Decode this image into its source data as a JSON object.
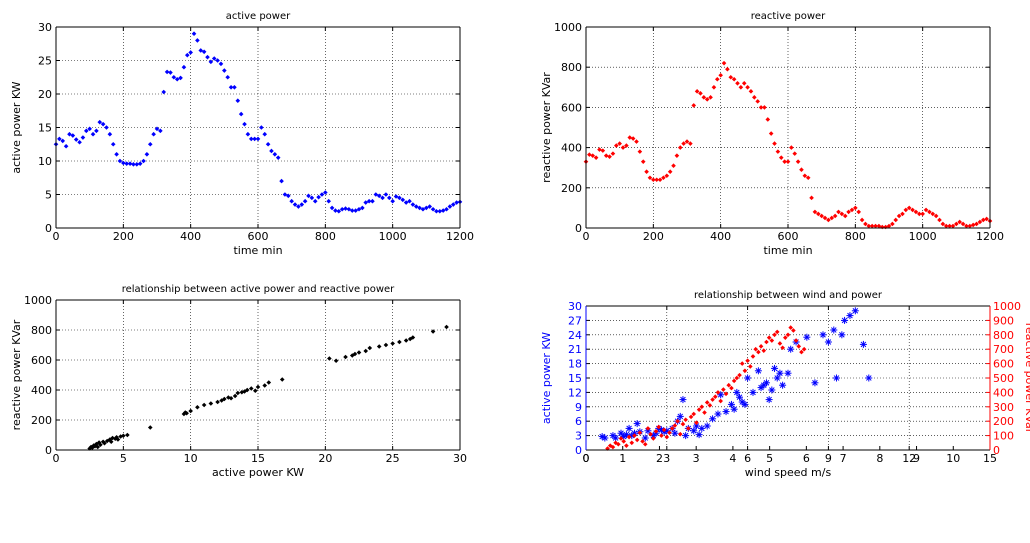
{
  "chart_data": [
    {
      "type": "scatter",
      "title": "active power",
      "xlabel": "time  min",
      "ylabel": "active power  KW",
      "xlim": [
        0,
        1200
      ],
      "ylim": [
        0,
        30
      ],
      "xticks": [
        0,
        200,
        400,
        600,
        800,
        1000,
        1200
      ],
      "yticks": [
        0,
        5,
        10,
        15,
        20,
        25,
        30
      ],
      "grid": true,
      "marker": "dot",
      "color": "#0000ff",
      "series": [
        {
          "x": [
            0,
            10,
            20,
            30,
            40,
            50,
            60,
            70,
            80,
            90,
            100,
            110,
            120,
            130,
            140,
            150,
            160,
            170,
            180,
            190,
            200,
            210,
            220,
            230,
            240,
            250,
            260,
            270,
            280,
            290,
            300,
            310,
            320,
            330,
            340,
            350,
            360,
            370,
            380,
            390,
            400,
            410,
            420,
            430,
            440,
            450,
            460,
            470,
            480,
            490,
            500,
            510,
            520,
            530,
            540,
            550,
            560,
            570,
            580,
            590,
            600,
            610,
            620,
            630,
            640,
            650,
            660,
            670,
            680,
            690,
            700,
            710,
            720,
            730,
            740,
            750,
            760,
            770,
            780,
            790,
            800,
            810,
            820,
            830,
            840,
            850,
            860,
            870,
            880,
            890,
            900,
            910,
            920,
            930,
            940,
            950,
            960,
            970,
            980,
            990,
            1000,
            1010,
            1020,
            1030,
            1040,
            1050,
            1060,
            1070,
            1080,
            1090,
            1100,
            1110,
            1120,
            1130,
            1140,
            1150,
            1160,
            1170,
            1180,
            1190,
            1200
          ],
          "y": [
            12.5,
            13.3,
            13.0,
            12.2,
            14.0,
            13.8,
            13.2,
            12.8,
            13.5,
            14.5,
            14.8,
            14.0,
            14.5,
            15.8,
            15.5,
            15.0,
            14.0,
            12.5,
            11.0,
            10.0,
            9.7,
            9.6,
            9.6,
            9.5,
            9.5,
            9.6,
            10.0,
            11.0,
            12.5,
            14.0,
            14.8,
            14.5,
            20.3,
            23.3,
            23.2,
            22.5,
            22.2,
            22.4,
            24.0,
            25.8,
            26.2,
            29.0,
            28.0,
            26.5,
            26.3,
            25.5,
            24.8,
            25.3,
            25.0,
            24.5,
            23.5,
            22.5,
            21.0,
            21.0,
            19.0,
            17.0,
            15.5,
            14.0,
            13.3,
            13.3,
            13.3,
            15.0,
            14.0,
            12.5,
            11.5,
            11.0,
            10.5,
            7.0,
            5.0,
            4.8,
            4.0,
            3.5,
            3.2,
            3.5,
            4.0,
            4.8,
            4.5,
            4.0,
            4.6,
            5.0,
            5.3,
            4.0,
            3.0,
            2.6,
            2.5,
            2.8,
            2.9,
            2.8,
            2.6,
            2.6,
            2.8,
            3.0,
            3.8,
            4.0,
            4.0,
            5.0,
            4.8,
            4.5,
            5.0,
            4.5,
            4.0,
            4.7,
            4.5,
            4.2,
            3.8,
            4.0,
            3.5,
            3.2,
            3.0,
            2.8,
            3.0,
            3.2,
            2.8,
            2.5,
            2.5,
            2.6,
            2.8,
            3.2,
            3.5,
            3.8,
            3.9
          ]
        }
      ]
    },
    {
      "type": "scatter",
      "title": "reactive power",
      "xlabel": "time  min",
      "ylabel": "reactive power  KVar",
      "xlim": [
        0,
        1200
      ],
      "ylim": [
        0,
        1000
      ],
      "xticks": [
        0,
        200,
        400,
        600,
        800,
        1000,
        1200
      ],
      "yticks": [
        0,
        200,
        400,
        600,
        800,
        1000
      ],
      "grid": true,
      "marker": "dot",
      "color": "#ff0000",
      "series": [
        {
          "x": [
            0,
            10,
            20,
            30,
            40,
            50,
            60,
            70,
            80,
            90,
            100,
            110,
            120,
            130,
            140,
            150,
            160,
            170,
            180,
            190,
            200,
            210,
            220,
            230,
            240,
            250,
            260,
            270,
            280,
            290,
            300,
            310,
            320,
            330,
            340,
            350,
            360,
            370,
            380,
            390,
            400,
            410,
            420,
            430,
            440,
            450,
            460,
            470,
            480,
            490,
            500,
            510,
            520,
            530,
            540,
            550,
            560,
            570,
            580,
            590,
            600,
            610,
            620,
            630,
            640,
            650,
            660,
            670,
            680,
            690,
            700,
            710,
            720,
            730,
            740,
            750,
            760,
            770,
            780,
            790,
            800,
            810,
            820,
            830,
            840,
            850,
            860,
            870,
            880,
            890,
            900,
            910,
            920,
            930,
            940,
            950,
            960,
            970,
            980,
            990,
            1000,
            1010,
            1020,
            1030,
            1040,
            1050,
            1060,
            1070,
            1080,
            1090,
            1100,
            1110,
            1120,
            1130,
            1140,
            1150,
            1160,
            1170,
            1180,
            1190,
            1200
          ],
          "y": [
            330,
            365,
            360,
            350,
            390,
            385,
            360,
            355,
            370,
            410,
            420,
            400,
            410,
            450,
            445,
            430,
            380,
            330,
            280,
            250,
            240,
            240,
            240,
            250,
            260,
            280,
            310,
            360,
            400,
            420,
            430,
            420,
            610,
            680,
            670,
            650,
            640,
            650,
            700,
            740,
            760,
            820,
            790,
            750,
            740,
            720,
            700,
            720,
            700,
            680,
            650,
            630,
            600,
            600,
            540,
            470,
            420,
            380,
            350,
            330,
            330,
            400,
            370,
            330,
            290,
            260,
            250,
            150,
            80,
            70,
            60,
            50,
            40,
            50,
            60,
            80,
            70,
            60,
            80,
            90,
            100,
            80,
            40,
            20,
            10,
            10,
            10,
            10,
            5,
            5,
            10,
            20,
            40,
            60,
            70,
            90,
            100,
            90,
            80,
            70,
            70,
            90,
            80,
            70,
            60,
            40,
            20,
            10,
            10,
            10,
            20,
            30,
            20,
            10,
            10,
            15,
            20,
            30,
            40,
            45,
            35
          ]
        }
      ]
    },
    {
      "type": "scatter",
      "title": "relationship between active power and reactive power",
      "xlabel": "active power  KW",
      "ylabel": "reactive power  KVar",
      "xlim": [
        0,
        30
      ],
      "ylim": [
        0,
        1000
      ],
      "xticks": [
        0,
        5,
        10,
        15,
        20,
        25,
        30
      ],
      "yticks": [
        0,
        200,
        400,
        600,
        800,
        1000
      ],
      "grid": true,
      "marker": "dot",
      "color": "#000000",
      "series": [
        {
          "x": [
            2.5,
            2.6,
            2.7,
            2.8,
            2.9,
            3.0,
            3.1,
            3.2,
            3.3,
            3.5,
            3.6,
            3.8,
            4.0,
            4.1,
            4.2,
            4.4,
            4.5,
            4.6,
            4.8,
            5.0,
            5.3,
            7.0,
            9.5,
            9.6,
            9.7,
            10.0,
            10.5,
            11.0,
            11.5,
            12.0,
            12.3,
            12.5,
            12.8,
            13.0,
            13.3,
            13.5,
            13.8,
            14.0,
            14.2,
            14.5,
            14.8,
            15.0,
            15.5,
            15.8,
            16.8,
            20.3,
            20.8,
            21.5,
            22.0,
            22.2,
            22.5,
            23.0,
            23.3,
            24.0,
            24.5,
            25.0,
            25.5,
            26.0,
            26.3,
            26.5,
            28.0,
            29.0
          ],
          "y": [
            10,
            20,
            15,
            30,
            25,
            40,
            20,
            50,
            35,
            55,
            45,
            60,
            70,
            55,
            80,
            75,
            85,
            70,
            90,
            95,
            100,
            150,
            240,
            250,
            245,
            260,
            285,
            300,
            310,
            320,
            330,
            340,
            350,
            345,
            360,
            380,
            385,
            390,
            400,
            410,
            395,
            420,
            430,
            450,
            470,
            610,
            595,
            620,
            630,
            640,
            650,
            660,
            680,
            690,
            700,
            710,
            720,
            730,
            740,
            750,
            790,
            820
          ]
        }
      ]
    },
    {
      "type": "scatter",
      "title": "relationship between wind and power",
      "xlabel": "wind speed  m/s",
      "ylabel": "active power  KW",
      "ylabel_right": "reactive power  KVar",
      "xlim": [
        0,
        15
      ],
      "ylim": [
        0,
        30
      ],
      "ylim_right": [
        0,
        1000
      ],
      "xticks": [
        0,
        3,
        6,
        9,
        12,
        15
      ],
      "yticks": [
        0,
        3,
        6,
        9,
        12,
        15,
        18,
        21,
        24,
        27,
        30
      ],
      "yticks_right": [
        0,
        100,
        200,
        300,
        400,
        500,
        600,
        700,
        800,
        900,
        1000
      ],
      "x2ticks": [
        0,
        1,
        2,
        3,
        4,
        5,
        6,
        7,
        8,
        9,
        10
      ],
      "x2lim": [
        0,
        11
      ],
      "grid": true,
      "left_color": "#0000ff",
      "right_color": "#ff0000",
      "series": [
        {
          "name": "active power",
          "axis": "left",
          "marker": "star",
          "color": "#0000ff",
          "x": [
            0.6,
            0.7,
            1.0,
            1.1,
            1.3,
            1.4,
            1.5,
            1.6,
            1.7,
            1.8,
            1.9,
            2.0,
            2.2,
            2.3,
            2.5,
            2.6,
            2.7,
            2.8,
            2.9,
            3.0,
            3.2,
            3.3,
            3.4,
            3.5,
            3.6,
            3.7,
            3.8,
            4.0,
            4.1,
            4.2,
            4.3,
            4.5,
            4.7,
            4.9,
            5.0,
            5.2,
            5.4,
            5.5,
            5.6,
            5.7,
            5.8,
            5.9,
            6.0,
            6.2,
            6.4,
            6.5,
            6.6,
            6.7,
            6.8,
            6.9,
            7.0,
            7.1,
            7.2,
            7.3,
            7.5,
            7.6,
            7.8,
            8.2,
            8.5,
            8.8,
            9.0,
            9.2,
            9.3,
            9.5,
            9.6,
            9.8,
            10.0,
            10.3,
            10.5
          ],
          "y": [
            2.8,
            2.5,
            3.0,
            2.5,
            3.5,
            2.8,
            3.2,
            4.5,
            3.0,
            3.5,
            5.5,
            3.8,
            2.5,
            4.0,
            3.0,
            3.5,
            4.5,
            4.2,
            3.8,
            4.0,
            4.5,
            3.5,
            6.0,
            7.0,
            10.5,
            3.0,
            4.5,
            4.0,
            5.0,
            3.2,
            4.5,
            5.0,
            6.5,
            7.5,
            11.5,
            8.0,
            9.5,
            8.5,
            12.0,
            11.0,
            10.0,
            9.5,
            15.0,
            12.0,
            16.5,
            13.0,
            13.5,
            14.0,
            10.5,
            12.5,
            17.0,
            15.0,
            16.0,
            13.5,
            16.0,
            21.0,
            22.5,
            23.5,
            14.0,
            24.0,
            22.5,
            25.0,
            15.0,
            24.0,
            27.0,
            28.0,
            29.0,
            22.0,
            15.0
          ]
        },
        {
          "name": "reactive power",
          "axis": "right",
          "marker": "dot",
          "color": "#ff0000",
          "x": [
            0.8,
            0.9,
            1.0,
            1.1,
            1.2,
            1.3,
            1.4,
            1.5,
            1.6,
            1.7,
            1.8,
            1.9,
            2.0,
            2.1,
            2.2,
            2.3,
            2.4,
            2.5,
            2.6,
            2.7,
            2.8,
            2.9,
            3.0,
            3.1,
            3.2,
            3.3,
            3.4,
            3.5,
            3.6,
            3.7,
            3.8,
            3.9,
            4.0,
            4.1,
            4.2,
            4.3,
            4.4,
            4.5,
            4.6,
            4.7,
            4.8,
            4.9,
            5.0,
            5.1,
            5.2,
            5.3,
            5.4,
            5.5,
            5.6,
            5.7,
            5.8,
            5.9,
            6.0,
            6.1,
            6.2,
            6.3,
            6.4,
            6.5,
            6.6,
            6.7,
            6.8,
            6.9,
            7.0,
            7.1,
            7.2,
            7.3,
            7.4,
            7.5,
            7.6,
            7.7,
            7.8,
            7.9,
            8.0,
            8.1
          ],
          "y": [
            10,
            30,
            20,
            50,
            40,
            80,
            60,
            30,
            90,
            50,
            100,
            70,
            120,
            60,
            40,
            150,
            110,
            80,
            130,
            160,
            100,
            140,
            90,
            120,
            150,
            170,
            200,
            110,
            180,
            210,
            150,
            230,
            250,
            190,
            280,
            300,
            260,
            330,
            310,
            350,
            370,
            400,
            340,
            420,
            390,
            450,
            430,
            480,
            500,
            520,
            600,
            550,
            620,
            580,
            650,
            700,
            680,
            720,
            690,
            750,
            780,
            760,
            800,
            820,
            740,
            710,
            780,
            800,
            850,
            830,
            760,
            720,
            680,
            700
          ]
        }
      ]
    }
  ]
}
